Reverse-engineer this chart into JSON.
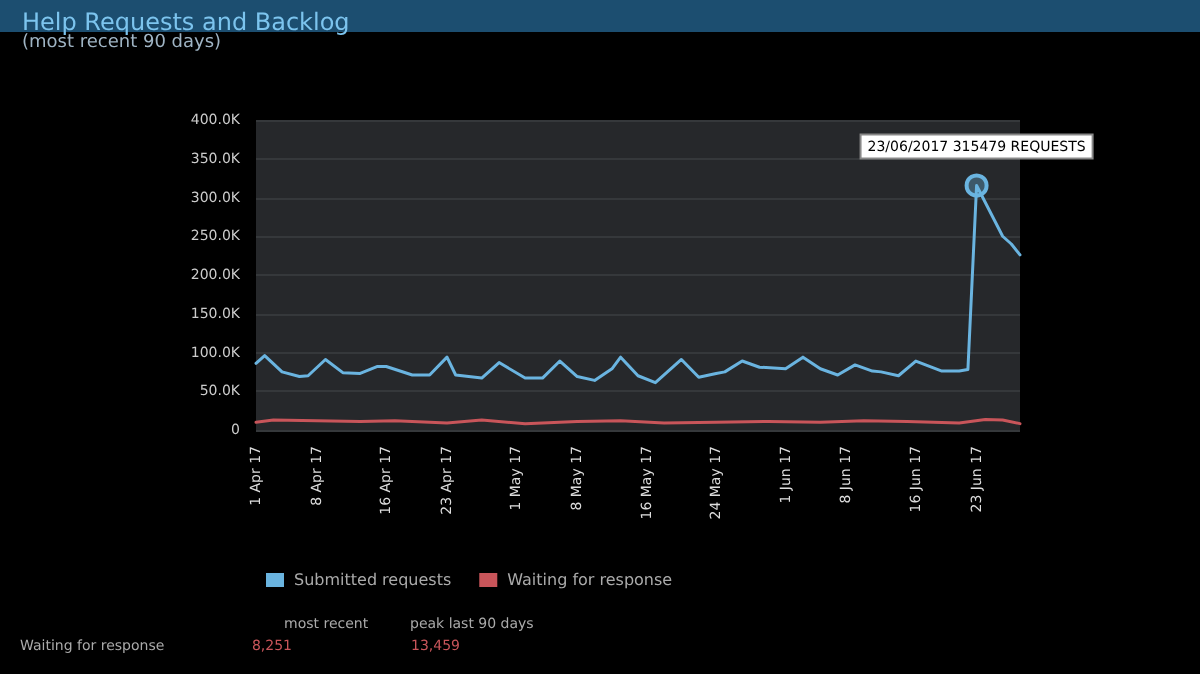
{
  "chart_data": {
    "type": "line",
    "title": "Help Requests and Backlog",
    "subtitle": "(most recent 90 days)",
    "xlim": [
      "2017-04-01",
      "2017-06-28"
    ],
    "xticks": [
      {
        "value": "2017-04-01",
        "label": "1 Apr 17"
      },
      {
        "value": "2017-04-08",
        "label": "8 Apr 17"
      },
      {
        "value": "2017-04-16",
        "label": "16 Apr 17"
      },
      {
        "value": "2017-04-23",
        "label": "23 Apr 17"
      },
      {
        "value": "2017-05-01",
        "label": "1 May 17"
      },
      {
        "value": "2017-05-08",
        "label": "8 May 17"
      },
      {
        "value": "2017-05-16",
        "label": "16 May 17"
      },
      {
        "value": "2017-05-24",
        "label": "24 May 17"
      },
      {
        "value": "2017-06-01",
        "label": "1 Jun 17"
      },
      {
        "value": "2017-06-08",
        "label": "8 Jun 17"
      },
      {
        "value": "2017-06-16",
        "label": "16 Jun 17"
      },
      {
        "value": "2017-06-23",
        "label": "23 Jun 17"
      }
    ],
    "ylim": [
      0,
      400000
    ],
    "yticks": [
      0,
      {
        "value": 50000,
        "label": "50.0K"
      },
      {
        "value": 100000,
        "label": "100.0K"
      },
      {
        "value": 150000,
        "label": "150.0K"
      },
      {
        "value": 200000,
        "label": "200.0K"
      },
      {
        "value": 250000,
        "label": "250.0K"
      },
      {
        "value": 300000,
        "label": "300.0K"
      },
      {
        "value": 350000,
        "label": "350.0K"
      },
      {
        "value": 400000,
        "label": "400.0K"
      }
    ],
    "grid": "y",
    "legend": "bottom",
    "marker": "none",
    "line_style": "solid",
    "series": [
      {
        "name": "Submitted requests",
        "color": "#6ab4e0",
        "x": [
          "2017-04-01",
          "2017-04-02",
          "2017-04-04",
          "2017-04-06",
          "2017-04-07",
          "2017-04-09",
          "2017-04-11",
          "2017-04-13",
          "2017-04-15",
          "2017-04-16",
          "2017-04-19",
          "2017-04-21",
          "2017-04-23",
          "2017-04-24",
          "2017-04-27",
          "2017-04-29",
          "2017-05-02",
          "2017-05-04",
          "2017-05-06",
          "2017-05-08",
          "2017-05-10",
          "2017-05-12",
          "2017-05-13",
          "2017-05-15",
          "2017-05-17",
          "2017-05-20",
          "2017-05-22",
          "2017-05-24",
          "2017-05-25",
          "2017-05-27",
          "2017-05-29",
          "2017-06-01",
          "2017-06-03",
          "2017-06-05",
          "2017-06-07",
          "2017-06-09",
          "2017-06-11",
          "2017-06-12",
          "2017-06-14",
          "2017-06-16",
          "2017-06-19",
          "2017-06-21",
          "2017-06-22",
          "2017-06-23",
          "2017-06-26",
          "2017-06-27",
          "2017-06-28"
        ],
        "values": [
          86000,
          96000,
          75000,
          69000,
          70000,
          91000,
          74000,
          73000,
          82000,
          82000,
          71000,
          71000,
          94000,
          71000,
          67000,
          87000,
          67000,
          67000,
          89000,
          69000,
          64000,
          79000,
          94000,
          70000,
          61000,
          91000,
          68000,
          73000,
          75000,
          89000,
          81000,
          79000,
          94000,
          79000,
          71000,
          84000,
          76000,
          75000,
          70000,
          89000,
          76000,
          76000,
          78000,
          315479,
          250000,
          240000,
          226000
        ]
      },
      {
        "name": "Waiting for response",
        "color": "#c8555a",
        "x": [
          "2017-04-01",
          "2017-04-03",
          "2017-04-08",
          "2017-04-13",
          "2017-04-17",
          "2017-04-23",
          "2017-04-27",
          "2017-05-02",
          "2017-05-08",
          "2017-05-13",
          "2017-05-18",
          "2017-05-24",
          "2017-05-30",
          "2017-06-05",
          "2017-06-10",
          "2017-06-15",
          "2017-06-21",
          "2017-06-24",
          "2017-06-26",
          "2017-06-28"
        ],
        "values": [
          10000,
          13000,
          12000,
          11000,
          12000,
          9000,
          13000,
          8000,
          11000,
          12000,
          9000,
          10000,
          11000,
          10000,
          12000,
          11000,
          9000,
          13459,
          13000,
          8251
        ]
      }
    ],
    "annotations": [
      {
        "text": "23/06/2017 315479 REQUESTS",
        "x": "2017-06-23",
        "y": 315479
      },
      "most recent",
      "peak last 90 days",
      "Waiting for response",
      "8,251",
      "13,459"
    ]
  }
}
